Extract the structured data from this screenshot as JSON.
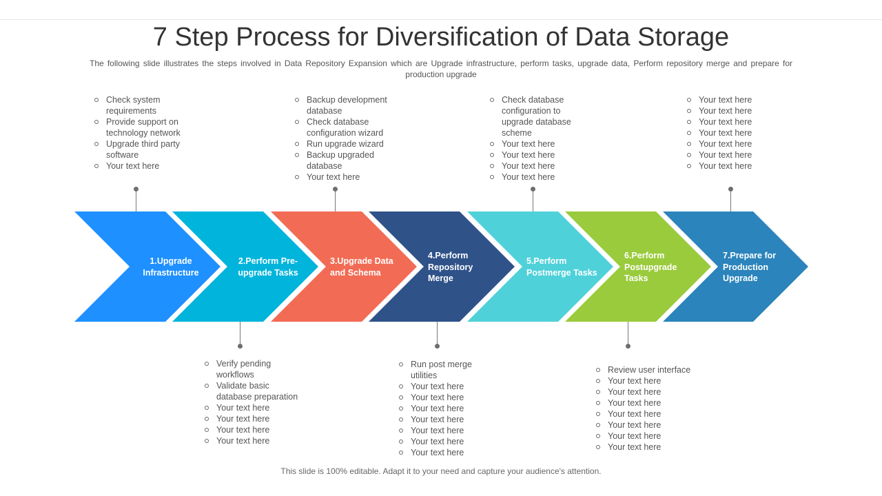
{
  "title": "7 Step Process for Diversification of Data Storage",
  "subtitle": "The following slide illustrates the steps involved  in Data Repository Expansion which are Upgrade infrastructure, perform tasks, upgrade data, Perform repository merge and prepare for production upgrade",
  "footer": "This slide is 100% editable. Adapt it to your need and capture your audience's attention.",
  "steps": [
    {
      "label": [
        "1.Upgrade",
        "Infrastructure"
      ],
      "color": "#1e90ff",
      "bullets": [
        "Check system",
        "requirements",
        "Provide  support on",
        "technology network",
        "Upgrade third party",
        "software",
        "Your text here"
      ],
      "bullet_markers": [
        true,
        false,
        true,
        false,
        true,
        false,
        true
      ]
    },
    {
      "label": [
        "2.Perform Pre-",
        "upgrade Tasks"
      ],
      "color": "#00b4dc",
      "bullets": [
        "Verify pending",
        "workflows",
        "Validate basic",
        "database preparation",
        "Your text here",
        "Your text here",
        "Your text here",
        "Your text here"
      ],
      "bullet_markers": [
        true,
        false,
        true,
        false,
        true,
        true,
        true,
        true
      ]
    },
    {
      "label": [
        "3.Upgrade Data",
        "and Schema"
      ],
      "color": "#f26b55",
      "bullets": [
        "Backup development",
        "database",
        "Check database",
        "configuration wizard",
        "Run upgrade wizard",
        "Backup upgraded",
        "database",
        "Your text here"
      ],
      "bullet_markers": [
        true,
        false,
        true,
        false,
        true,
        true,
        false,
        true
      ]
    },
    {
      "label": [
        "4.Perform",
        "Repository",
        "Merge"
      ],
      "color": "#2f5289",
      "bullets": [
        "Run post merge",
        "utilities",
        "Your text here",
        "Your text here",
        "Your text here",
        "Your text here",
        "Your text here",
        "Your text here",
        "Your text here"
      ],
      "bullet_markers": [
        true,
        false,
        true,
        true,
        true,
        true,
        true,
        true,
        true
      ]
    },
    {
      "label": [
        "5.Perform",
        "Postmerge Tasks"
      ],
      "color": "#4fd1d9",
      "bullets": [
        "Check database",
        "configuration to",
        "upgrade database",
        "scheme",
        "Your text here",
        "Your text here",
        "Your text here",
        "Your text here"
      ],
      "bullet_markers": [
        true,
        false,
        false,
        false,
        true,
        true,
        true,
        true
      ]
    },
    {
      "label": [
        "6.Perform",
        "Postupgrade",
        "Tasks"
      ],
      "color": "#9acb3c",
      "bullets": [
        "Review  user interface",
        "Your text here",
        "Your text here",
        "Your text here",
        "Your text here",
        "Your text here",
        "Your text here",
        "Your text here"
      ],
      "bullet_markers": [
        true,
        true,
        true,
        true,
        true,
        true,
        true,
        true
      ]
    },
    {
      "label": [
        "7.Prepare for",
        "Production",
        "Upgrade"
      ],
      "color": "#2b84bb",
      "bullets": [
        "Your text here",
        "Your text here",
        "Your text here",
        "Your text here",
        "Your text here",
        "Your text here",
        "Your text here"
      ],
      "bullet_markers": [
        true,
        true,
        true,
        true,
        true,
        true,
        true
      ]
    }
  ]
}
